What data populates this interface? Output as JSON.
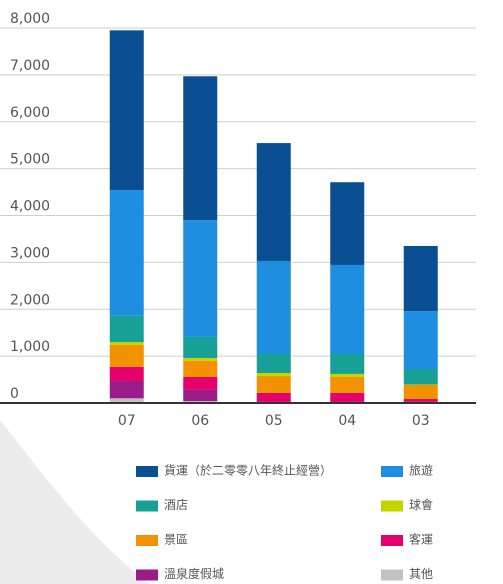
{
  "chart_data": {
    "type": "stacked_bar",
    "categories": [
      "07",
      "06",
      "05",
      "04",
      "03"
    ],
    "series": [
      {
        "name": "其他",
        "color": "#c2c2c2",
        "values": [
          100,
          40,
          10,
          10,
          5
        ]
      },
      {
        "name": "溫泉度假城",
        "color": "#9b1b88",
        "values": [
          370,
          240,
          20,
          20,
          30
        ]
      },
      {
        "name": "客運",
        "color": "#e6006e",
        "values": [
          300,
          275,
          185,
          185,
          50
        ]
      },
      {
        "name": "景區",
        "color": "#f39200",
        "values": [
          470,
          345,
          360,
          340,
          300
        ]
      },
      {
        "name": "球會",
        "color": "#c3d400",
        "values": [
          60,
          60,
          65,
          65,
          10
        ]
      },
      {
        "name": "酒店",
        "color": "#16a096",
        "values": [
          560,
          450,
          405,
          425,
          330
        ]
      },
      {
        "name": "旅遊",
        "color": "#1e8ee0",
        "values": [
          2680,
          2490,
          1985,
          1900,
          1235
        ]
      },
      {
        "name": "貨運（於二零零八年終止經營）",
        "color": "#0a4f91",
        "values": [
          3410,
          3070,
          2515,
          1765,
          1390
        ]
      }
    ],
    "ylim": [
      0,
      8000
    ],
    "yticks": [
      0,
      {
        "value": 1000,
        "label": "1,000"
      },
      {
        "value": 2000,
        "label": "2,000"
      },
      {
        "value": 3000,
        "label": "3,000"
      },
      {
        "value": 4000,
        "label": "4,000"
      },
      {
        "value": 5000,
        "label": "5,000"
      },
      {
        "value": 6000,
        "label": "6,000"
      },
      {
        "value": 7000,
        "label": "7,000"
      },
      {
        "value": 8000,
        "label": "8,000"
      }
    ],
    "grid": true
  }
}
